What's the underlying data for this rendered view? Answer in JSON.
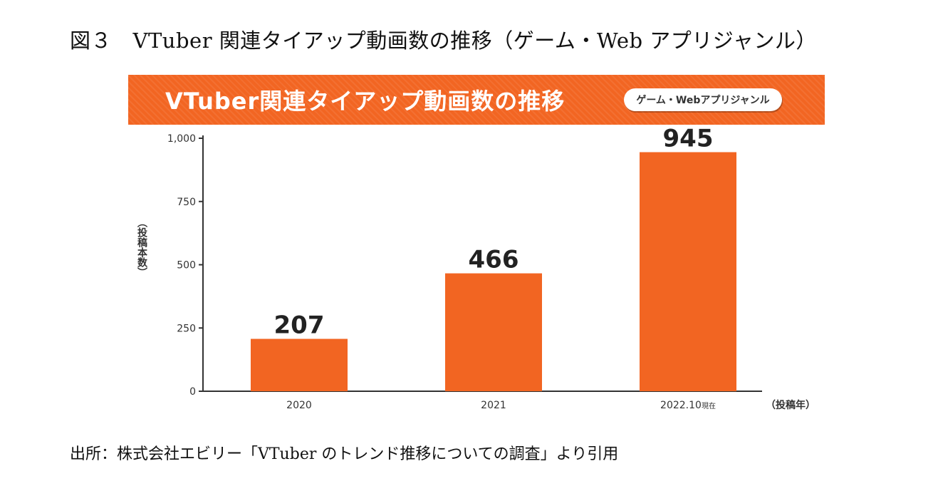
{
  "figure_title": "図３　VTuber 関連タイアップ動画数の推移（ゲーム・Web アプリジャンル）",
  "banner": {
    "title": "VTuber関連タイアップ動画数の推移",
    "badge": "ゲーム・Webアプリジャンル"
  },
  "colors": {
    "bar": "#f26522",
    "banner": "#f26522",
    "axis": "#333333"
  },
  "chart_data": {
    "type": "bar",
    "title": "VTuber関連タイアップ動画数の推移",
    "subtitle": "ゲーム・Webアプリジャンル",
    "categories": [
      "2020",
      "2021",
      "2022.10"
    ],
    "category_suffix": [
      "",
      "",
      "現在"
    ],
    "values": [
      207,
      466,
      945
    ],
    "data_labels": [
      "207",
      "466",
      "945"
    ],
    "ylim": [
      0,
      1000
    ],
    "yticks": [
      0,
      250,
      500,
      750,
      1000
    ],
    "ytick_labels": [
      "0",
      "250",
      "500",
      "750",
      "1,000"
    ],
    "ylabel": "（投稿本数）",
    "xlabel": "（投稿年）",
    "grid": false,
    "legend": "none"
  },
  "source": "出所：株式会社エビリー「VTuber のトレンド推移についての調査」より引用"
}
